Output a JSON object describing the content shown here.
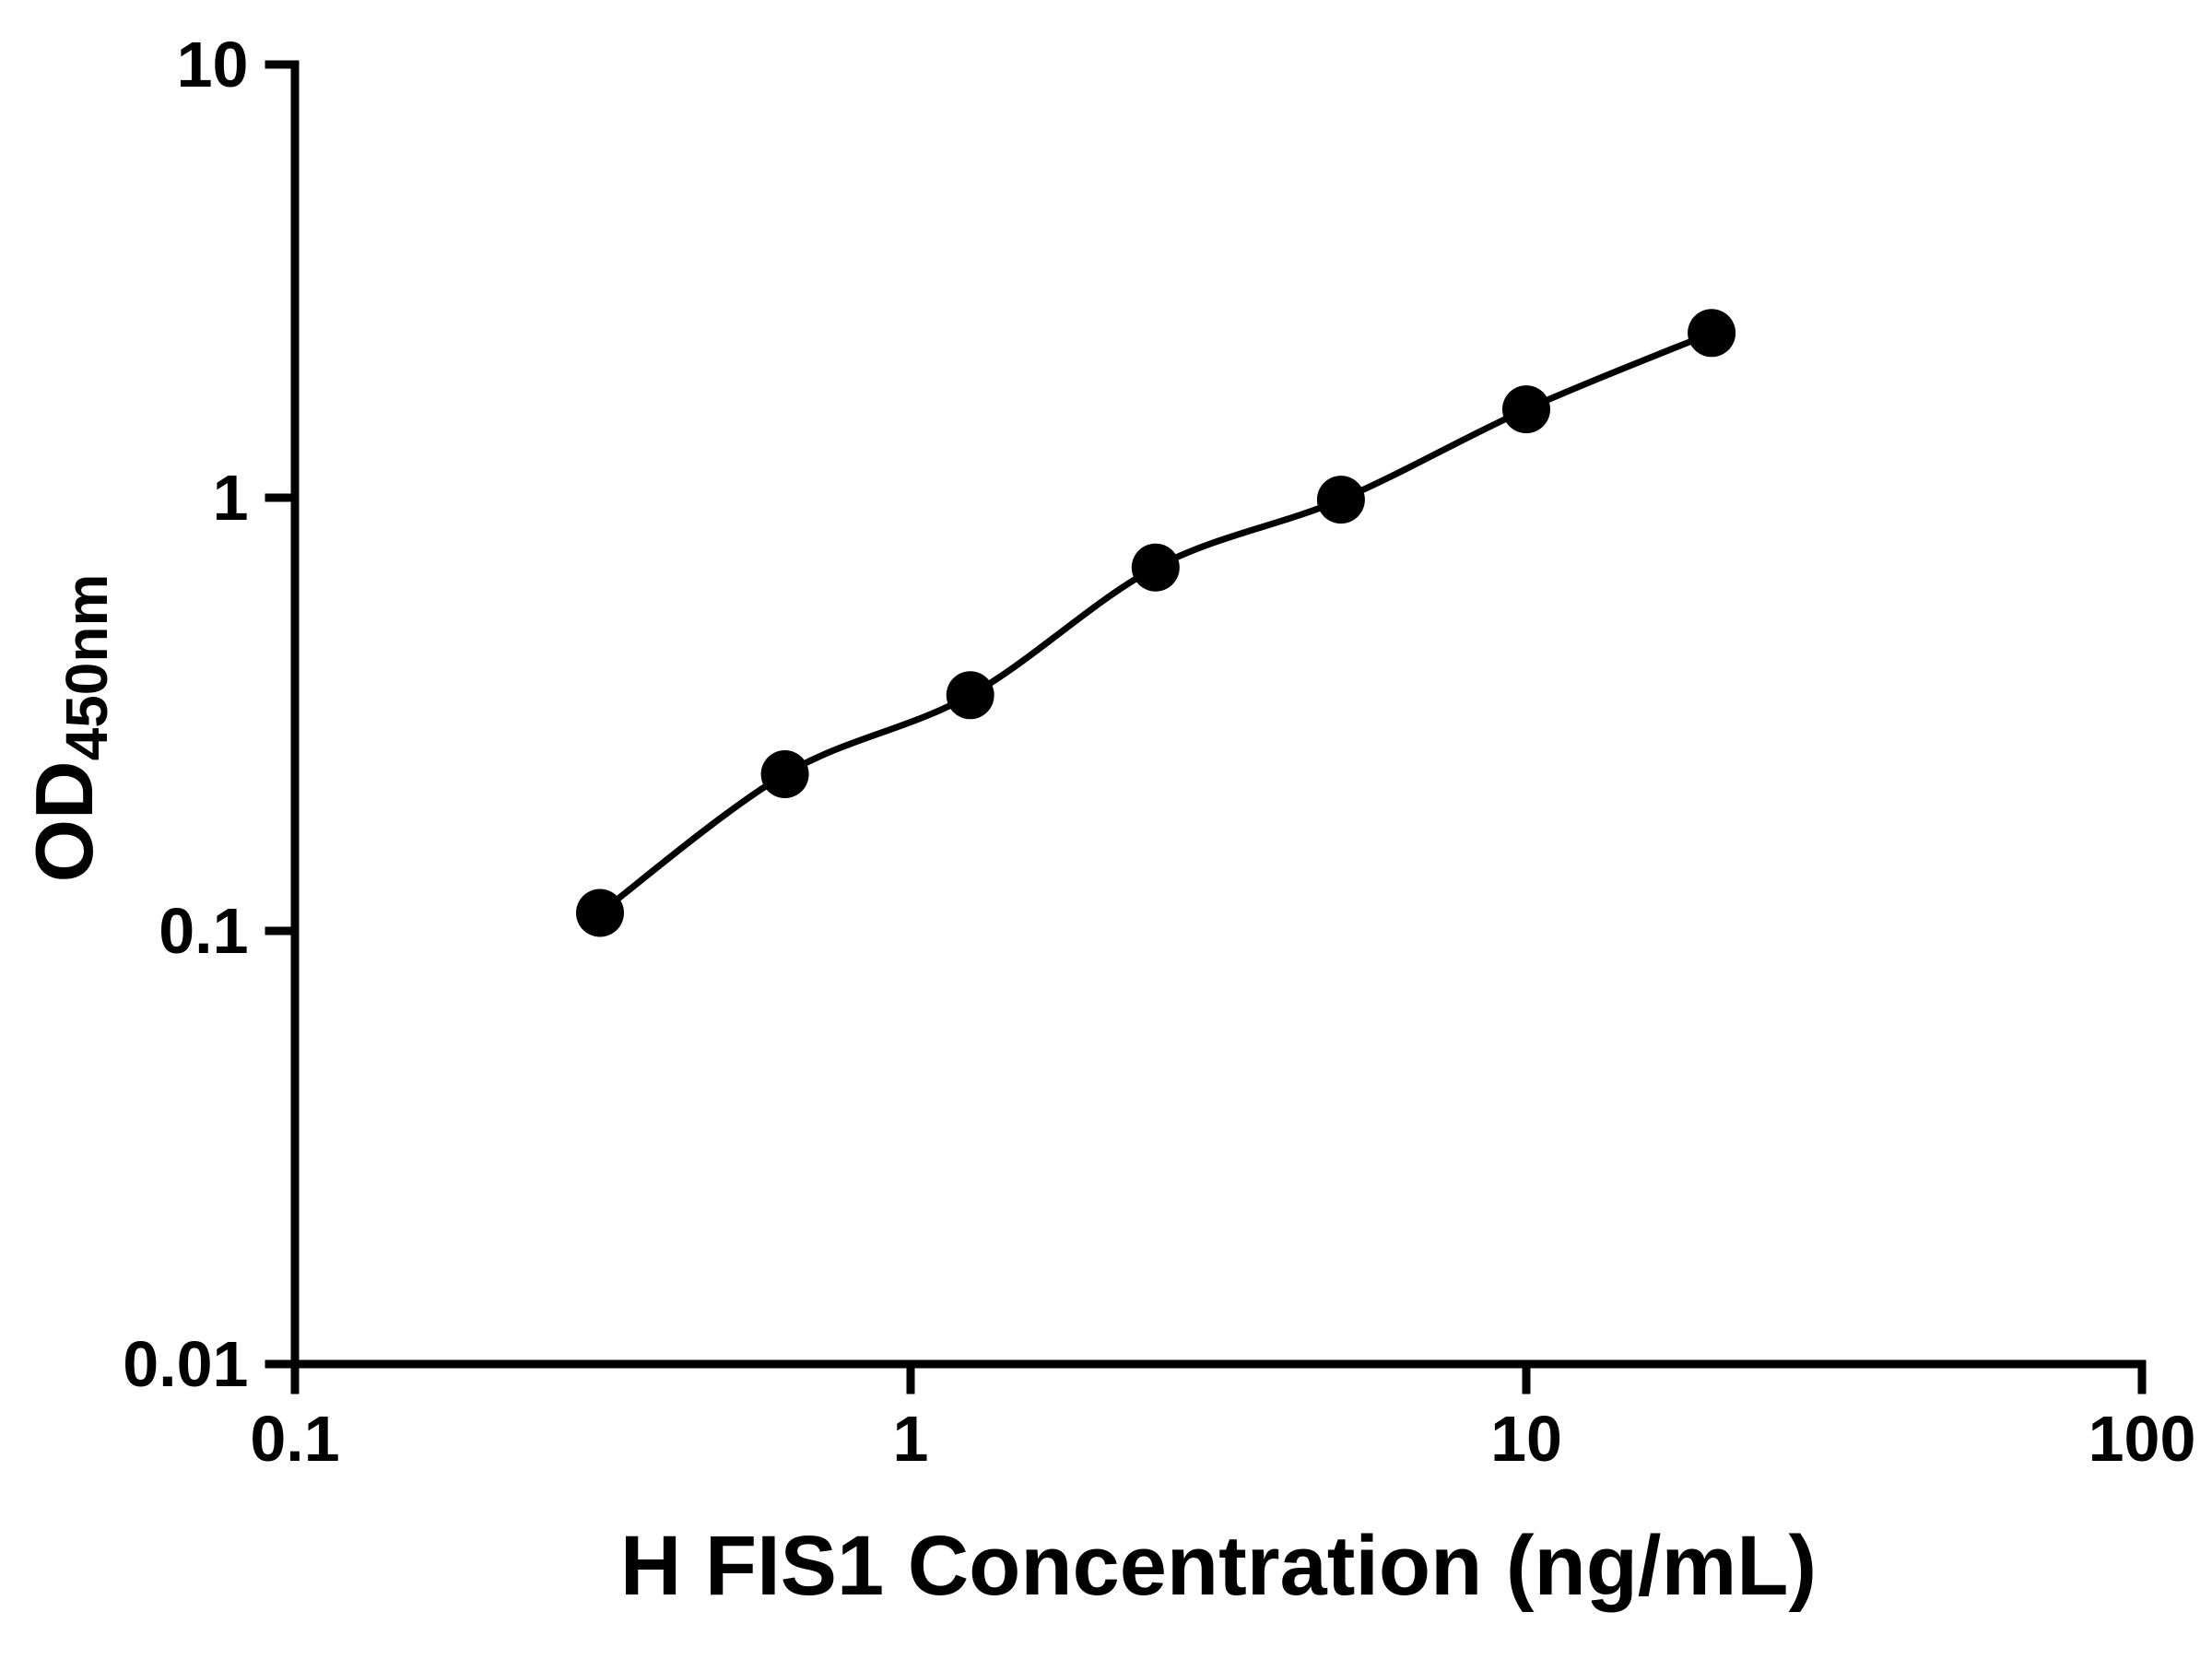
{
  "chart_data": {
    "type": "scatter",
    "subtype": "line-with-markers",
    "xlabel": "H FIS1 Concentration (ng/mL)",
    "ylabel_base": "OD",
    "ylabel_subscript": "450nm",
    "x": [
      0.313,
      0.625,
      1.25,
      2.5,
      5,
      10,
      20
    ],
    "y": [
      0.11,
      0.23,
      0.35,
      0.69,
      0.99,
      1.6,
      2.4
    ],
    "x_scale": "log",
    "y_scale": "log",
    "xlim": [
      0.1,
      100
    ],
    "ylim": [
      0.01,
      10
    ],
    "x_ticks": [
      0.1,
      1,
      10,
      100
    ],
    "x_tick_labels": [
      "0.1",
      "1",
      "10",
      "100"
    ],
    "y_ticks": [
      0.01,
      0.1,
      1,
      10
    ],
    "y_tick_labels": [
      "0.01",
      "0.1",
      "1",
      "10"
    ],
    "grid": false,
    "legend": false,
    "marker_color": "#000000",
    "line_color": "#000000",
    "axis_color": "#000000",
    "background": "#ffffff"
  }
}
